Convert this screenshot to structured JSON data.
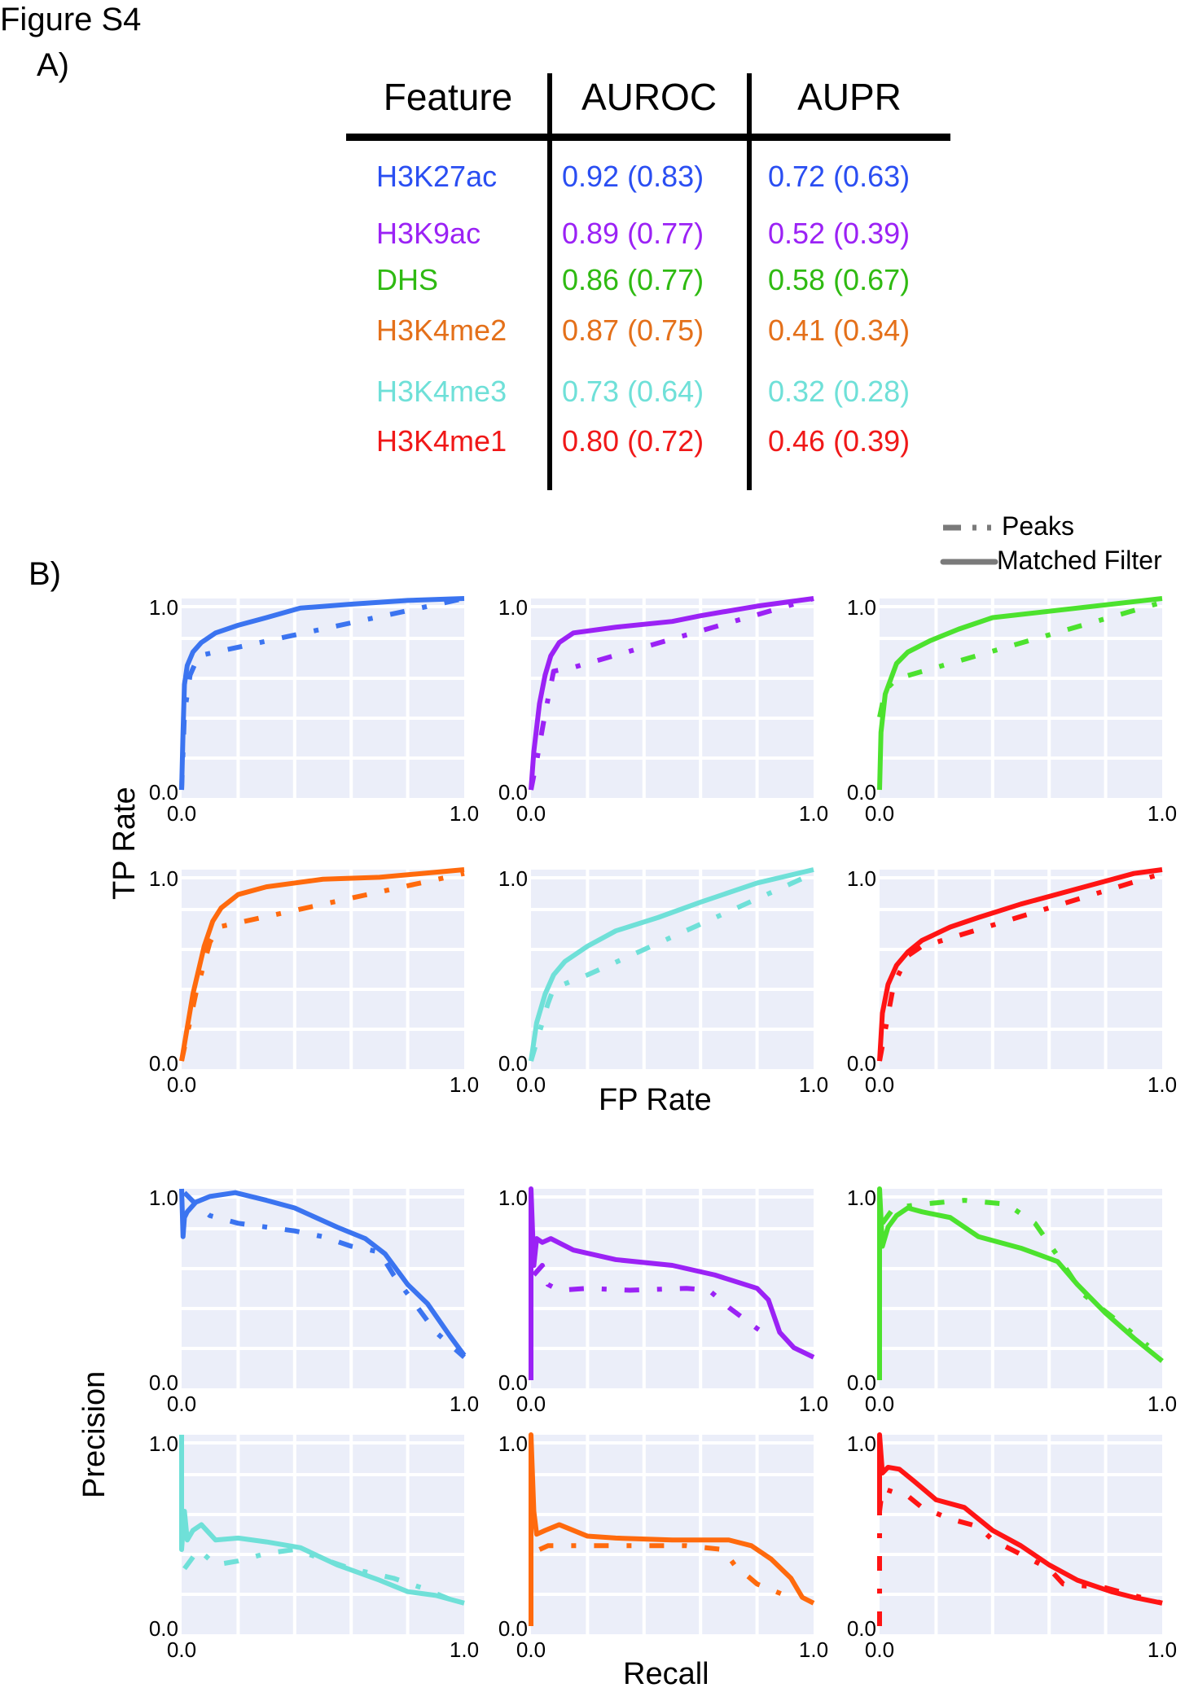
{
  "figure_title": "Figure S4",
  "panel_a_label": "A)",
  "panel_b_label": "B)",
  "table": {
    "headers": [
      "Feature",
      "AUROC",
      "AUPR"
    ],
    "rows": [
      {
        "feature": "H3K27ac",
        "auroc": "0.92 (0.83)",
        "aupr": "0.72 (0.63)",
        "color": "#2a4ef2"
      },
      {
        "feature": "H3K9ac",
        "auroc": "0.89 (0.77)",
        "aupr": "0.52 (0.39)",
        "color": "#9b22f5"
      },
      {
        "feature": "DHS",
        "auroc": "0.86 (0.77)",
        "aupr": "0.58 (0.67)",
        "color": "#2fba12"
      },
      {
        "feature": "H3K4me2",
        "auroc": "0.87 (0.75)",
        "aupr": "0.41 (0.34)",
        "color": "#e4701a"
      },
      {
        "feature": "H3K4me3",
        "auroc": "0.73 (0.64)",
        "aupr": "0.32 (0.28)",
        "color": "#6fe0d8"
      },
      {
        "feature": "H3K4me1",
        "auroc": "0.80 (0.72)",
        "aupr": "0.46 (0.39)",
        "color": "#f01818"
      }
    ]
  },
  "legend": {
    "items": [
      {
        "label": "Peaks",
        "style": "dash-dot"
      },
      {
        "label": "Matched Filter",
        "style": "solid"
      }
    ],
    "color": "#7a7a7a"
  },
  "axis_titles": {
    "roc_y": "TP Rate",
    "roc_x": "FP Rate",
    "pr_y": "Precision",
    "pr_x": "Recall"
  },
  "chart_data": [
    {
      "type": "line",
      "group": "ROC",
      "feature": "H3K27ac",
      "color": "#3b74f0",
      "xlim": [
        0,
        1
      ],
      "ylim": [
        0,
        1
      ],
      "xticks": [
        "0.0",
        "1.0"
      ],
      "yticks": [
        "0.0",
        "1.0"
      ],
      "grid": true,
      "series": [
        {
          "name": "Matched Filter",
          "x": [
            0,
            0.005,
            0.01,
            0.02,
            0.04,
            0.07,
            0.12,
            0.2,
            0.3,
            0.42,
            0.6,
            0.8,
            1.0
          ],
          "y": [
            0,
            0.3,
            0.55,
            0.65,
            0.72,
            0.77,
            0.82,
            0.86,
            0.9,
            0.95,
            0.97,
            0.99,
            1.0
          ]
        },
        {
          "name": "Peaks",
          "x": [
            0,
            0.01,
            0.03,
            0.06,
            0.12,
            1.0
          ],
          "y": [
            0,
            0.4,
            0.6,
            0.7,
            0.72,
            1.0
          ]
        }
      ]
    },
    {
      "type": "line",
      "group": "ROC",
      "feature": "H3K9ac",
      "color": "#9b22f5",
      "xlim": [
        0,
        1
      ],
      "ylim": [
        0,
        1
      ],
      "xticks": [
        "0.0",
        "1.0"
      ],
      "yticks": [
        "0.0",
        "1.0"
      ],
      "grid": true,
      "series": [
        {
          "name": "Matched Filter",
          "x": [
            0,
            0.01,
            0.03,
            0.05,
            0.07,
            0.1,
            0.15,
            0.3,
            0.5,
            0.6,
            0.8,
            1.0
          ],
          "y": [
            0,
            0.2,
            0.45,
            0.6,
            0.7,
            0.77,
            0.82,
            0.85,
            0.88,
            0.91,
            0.96,
            1.0
          ]
        },
        {
          "name": "Peaks",
          "x": [
            0,
            0.02,
            0.05,
            0.08,
            0.15,
            1.0
          ],
          "y": [
            0,
            0.15,
            0.4,
            0.62,
            0.64,
            1.0
          ]
        }
      ]
    },
    {
      "type": "line",
      "group": "ROC",
      "feature": "DHS",
      "color": "#4ce22e",
      "xlim": [
        0,
        1
      ],
      "ylim": [
        0,
        1
      ],
      "xticks": [
        "0.0",
        "1.0"
      ],
      "yticks": [
        "0.0",
        "1.0"
      ],
      "grid": true,
      "series": [
        {
          "name": "Matched Filter",
          "x": [
            0,
            0.005,
            0.02,
            0.04,
            0.06,
            0.1,
            0.18,
            0.28,
            0.4,
            1.0
          ],
          "y": [
            0,
            0.3,
            0.5,
            0.58,
            0.66,
            0.72,
            0.78,
            0.84,
            0.9,
            1.0
          ]
        },
        {
          "name": "Peaks",
          "x": [
            0,
            0.01,
            0.02,
            0.06,
            1.0
          ],
          "y": [
            0.38,
            0.45,
            0.52,
            0.58,
            0.98
          ]
        }
      ]
    },
    {
      "type": "line",
      "group": "ROC",
      "feature": "H3K4me2",
      "color": "#ff6a0d",
      "xlim": [
        0,
        1
      ],
      "ylim": [
        0,
        1
      ],
      "xticks": [
        "0.0",
        "1.0"
      ],
      "yticks": [
        "0.0",
        "1.0"
      ],
      "grid": true,
      "series": [
        {
          "name": "Matched Filter",
          "x": [
            0,
            0.04,
            0.08,
            0.11,
            0.14,
            0.2,
            0.3,
            0.4,
            0.5,
            0.7,
            0.85,
            1.0
          ],
          "y": [
            0,
            0.35,
            0.6,
            0.73,
            0.8,
            0.87,
            0.91,
            0.93,
            0.95,
            0.96,
            0.98,
            1.0
          ]
        },
        {
          "name": "Peaks",
          "x": [
            0,
            0.05,
            0.1,
            0.13,
            1.0
          ],
          "y": [
            0,
            0.35,
            0.62,
            0.7,
            0.98
          ]
        }
      ]
    },
    {
      "type": "line",
      "group": "ROC",
      "feature": "H3K4me3",
      "color": "#6fe0d8",
      "xlim": [
        0,
        1
      ],
      "ylim": [
        0,
        1
      ],
      "xticks": [
        "0.0",
        "1.0"
      ],
      "yticks": [
        "0.0",
        "1.0"
      ],
      "grid": true,
      "series": [
        {
          "name": "Matched Filter",
          "x": [
            0,
            0.02,
            0.05,
            0.08,
            0.12,
            0.2,
            0.3,
            0.45,
            0.6,
            0.8,
            1.0
          ],
          "y": [
            0,
            0.2,
            0.35,
            0.45,
            0.52,
            0.6,
            0.68,
            0.75,
            0.83,
            0.93,
            1.0
          ]
        },
        {
          "name": "Peaks",
          "x": [
            0,
            0.03,
            0.06,
            0.08,
            0.2,
            1.0
          ],
          "y": [
            0,
            0.15,
            0.3,
            0.38,
            0.45,
            0.98
          ]
        }
      ]
    },
    {
      "type": "line",
      "group": "ROC",
      "feature": "H3K4me1",
      "color": "#ff1414",
      "xlim": [
        0,
        1
      ],
      "ylim": [
        0,
        1
      ],
      "xticks": [
        "0.0",
        "1.0"
      ],
      "yticks": [
        "0.0",
        "1.0"
      ],
      "grid": true,
      "series": [
        {
          "name": "Matched Filter",
          "x": [
            0,
            0.01,
            0.03,
            0.06,
            0.1,
            0.15,
            0.25,
            0.35,
            0.5,
            0.7,
            0.9,
            1.0
          ],
          "y": [
            0,
            0.25,
            0.4,
            0.5,
            0.57,
            0.63,
            0.7,
            0.75,
            0.82,
            0.9,
            0.98,
            1.0
          ]
        },
        {
          "name": "Peaks",
          "x": [
            0,
            0.05,
            0.1,
            0.15,
            0.2,
            1.0
          ],
          "y": [
            0,
            0.4,
            0.55,
            0.6,
            0.62,
            0.98
          ]
        }
      ]
    },
    {
      "type": "line",
      "group": "PR",
      "feature": "H3K27ac",
      "color": "#3b74f0",
      "xlim": [
        0,
        1
      ],
      "ylim": [
        0,
        1
      ],
      "xticks": [
        "0.0",
        "1.0"
      ],
      "yticks": [
        "0.0",
        "1.0"
      ],
      "grid": true,
      "series": [
        {
          "name": "Matched Filter",
          "x": [
            0,
            0.005,
            0.01,
            0.02,
            0.05,
            0.1,
            0.19,
            0.3,
            0.4,
            0.55,
            0.65,
            0.72,
            0.8,
            0.87,
            0.95,
            1.0
          ],
          "y": [
            1.0,
            0.75,
            0.85,
            0.88,
            0.93,
            0.96,
            0.98,
            0.94,
            0.9,
            0.8,
            0.74,
            0.66,
            0.5,
            0.4,
            0.23,
            0.13
          ]
        },
        {
          "name": "Peaks",
          "x": [
            0.01,
            0.05,
            0.1,
            0.2,
            0.3,
            0.4,
            0.5,
            0.6,
            0.7,
            0.75,
            0.8,
            0.9,
            1.0
          ],
          "y": [
            0.98,
            0.92,
            0.86,
            0.82,
            0.8,
            0.78,
            0.75,
            0.7,
            0.67,
            0.55,
            0.45,
            0.25,
            0.12
          ]
        }
      ]
    },
    {
      "type": "line",
      "group": "PR",
      "feature": "H3K9ac",
      "color": "#9b22f5",
      "xlim": [
        0,
        1
      ],
      "ylim": [
        0,
        1
      ],
      "xticks": [
        "0.0",
        "1.0"
      ],
      "yticks": [
        "0.0",
        "1.0"
      ],
      "grid": true,
      "series": [
        {
          "name": "Matched Filter",
          "x": [
            0,
            0.0,
            0.01,
            0.02,
            0.04,
            0.07,
            0.15,
            0.3,
            0.5,
            0.65,
            0.8,
            0.84,
            0.88,
            0.93,
            1.0
          ],
          "y": [
            0,
            1.0,
            0.6,
            0.74,
            0.72,
            0.74,
            0.68,
            0.63,
            0.6,
            0.55,
            0.48,
            0.42,
            0.25,
            0.17,
            0.12
          ]
        },
        {
          "name": "Peaks",
          "x": [
            0.01,
            0.04,
            0.06,
            0.1,
            0.2,
            0.35,
            0.55,
            0.63,
            0.7,
            0.8,
            0.85
          ],
          "y": [
            0.55,
            0.6,
            0.5,
            0.47,
            0.48,
            0.47,
            0.48,
            0.47,
            0.38,
            0.27,
            0.22
          ]
        }
      ]
    },
    {
      "type": "line",
      "group": "PR",
      "feature": "DHS",
      "color": "#4ce22e",
      "xlim": [
        0,
        1
      ],
      "ylim": [
        0,
        1
      ],
      "xticks": [
        "0.0",
        "1.0"
      ],
      "yticks": [
        "0.0",
        "1.0"
      ],
      "grid": true,
      "series": [
        {
          "name": "Matched Filter",
          "x": [
            0,
            0.0,
            0.01,
            0.03,
            0.06,
            0.1,
            0.15,
            0.25,
            0.35,
            0.5,
            0.63,
            0.7,
            0.8,
            0.9,
            1.0
          ],
          "y": [
            0,
            1.0,
            0.7,
            0.8,
            0.86,
            0.9,
            0.88,
            0.85,
            0.75,
            0.69,
            0.62,
            0.5,
            0.35,
            0.22,
            0.1
          ]
        },
        {
          "name": "Peaks",
          "x": [
            0.01,
            0.05,
            0.15,
            0.3,
            0.45,
            0.55,
            0.63,
            0.72,
            0.85,
            0.95
          ],
          "y": [
            0.82,
            0.9,
            0.92,
            0.94,
            0.92,
            0.82,
            0.65,
            0.45,
            0.3,
            0.18
          ]
        }
      ]
    },
    {
      "type": "line",
      "group": "PR",
      "feature": "H3K4me3",
      "color": "#6fe0d8",
      "xlim": [
        0,
        1
      ],
      "ylim": [
        0,
        1
      ],
      "xticks": [
        "0.0",
        "1.0"
      ],
      "yticks": [
        "0.0",
        "1.0"
      ],
      "grid": true,
      "series": [
        {
          "name": "Matched Filter",
          "x": [
            0,
            0.0,
            0.01,
            0.02,
            0.04,
            0.07,
            0.12,
            0.2,
            0.3,
            0.42,
            0.55,
            0.7,
            0.8,
            0.9,
            1.0
          ],
          "y": [
            1.0,
            0.4,
            0.6,
            0.45,
            0.5,
            0.53,
            0.45,
            0.46,
            0.44,
            0.41,
            0.32,
            0.24,
            0.18,
            0.16,
            0.12
          ]
        },
        {
          "name": "Peaks",
          "x": [
            0.01,
            0.03,
            0.06,
            0.12,
            0.2,
            0.3,
            0.4,
            0.6,
            0.75,
            0.85,
            0.95
          ],
          "y": [
            0.3,
            0.34,
            0.4,
            0.32,
            0.34,
            0.38,
            0.4,
            0.3,
            0.25,
            0.2,
            0.14
          ]
        }
      ]
    },
    {
      "type": "line",
      "group": "PR",
      "feature": "H3K4me2",
      "color": "#ff6a0d",
      "xlim": [
        0,
        1
      ],
      "ylim": [
        0,
        1
      ],
      "xticks": [
        "0.0",
        "1.0"
      ],
      "yticks": [
        "0.0",
        "1.0"
      ],
      "grid": true,
      "series": [
        {
          "name": "Matched Filter",
          "x": [
            0,
            0.0,
            0.01,
            0.02,
            0.05,
            0.1,
            0.2,
            0.3,
            0.5,
            0.7,
            0.78,
            0.85,
            0.92,
            0.96,
            1.0
          ],
          "y": [
            0,
            1.0,
            0.6,
            0.48,
            0.5,
            0.53,
            0.47,
            0.46,
            0.45,
            0.45,
            0.42,
            0.35,
            0.25,
            0.15,
            0.12
          ]
        },
        {
          "name": "Peaks",
          "x": [
            0.03,
            0.06,
            0.1,
            0.2,
            0.35,
            0.55,
            0.68,
            0.72,
            0.8,
            0.9
          ],
          "y": [
            0.4,
            0.42,
            0.42,
            0.42,
            0.42,
            0.42,
            0.4,
            0.32,
            0.22,
            0.16
          ]
        }
      ]
    },
    {
      "type": "line",
      "group": "PR",
      "feature": "H3K4me1",
      "color": "#ff1414",
      "xlim": [
        0,
        1
      ],
      "ylim": [
        0,
        1
      ],
      "xticks": [
        "0.0",
        "1.0"
      ],
      "yticks": [
        "0.0",
        "1.0"
      ],
      "grid": true,
      "series": [
        {
          "name": "Matched Filter",
          "x": [
            0,
            0.0,
            0.01,
            0.03,
            0.07,
            0.12,
            0.2,
            0.3,
            0.4,
            0.5,
            0.6,
            0.7,
            0.82,
            0.9,
            1.0
          ],
          "y": [
            0.6,
            1.0,
            0.8,
            0.83,
            0.82,
            0.76,
            0.66,
            0.62,
            0.5,
            0.42,
            0.32,
            0.24,
            0.18,
            0.15,
            0.12
          ]
        },
        {
          "name": "Peaks",
          "x": [
            0,
            0.0,
            0.01,
            0.05,
            0.1,
            0.15,
            0.25,
            0.35,
            0.4,
            0.6,
            0.65,
            0.8,
            1.0
          ],
          "y": [
            0,
            0.6,
            0.72,
            0.7,
            0.68,
            0.62,
            0.56,
            0.52,
            0.45,
            0.3,
            0.22,
            0.2,
            0.12
          ]
        }
      ]
    }
  ]
}
